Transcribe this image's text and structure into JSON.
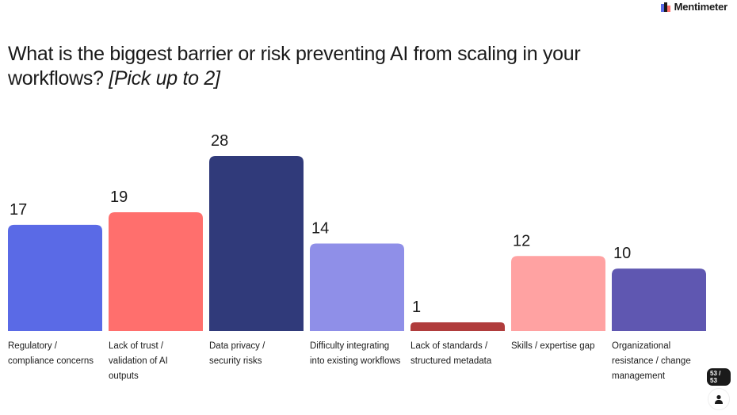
{
  "brand": {
    "name": "Mentimeter"
  },
  "question": {
    "text": "What is the biggest barrier or risk preventing AI from scaling in your workflows?",
    "hint": "[Pick up to 2]"
  },
  "chart_data": {
    "type": "bar",
    "categories": [
      "Regulatory /\ncompliance concerns",
      "Lack of trust /\nvalidation of AI\noutputs",
      "Data privacy /\nsecurity risks",
      "Difficulty integrating\ninto existing workflows",
      "Lack of standards /\nstructured metadata",
      "Skills / expertise gap",
      "Organizational\nresistance / change\nmanagement"
    ],
    "values": [
      17,
      19,
      28,
      14,
      1,
      12,
      10
    ],
    "colors": [
      "#5a6ae6",
      "#ff6f6d",
      "#303a7a",
      "#8f8fe8",
      "#b03c3c",
      "#ffa2a2",
      "#5f57b1"
    ],
    "title": "What is the biggest barrier or risk preventing AI from scaling in your workflows? [Pick up to 2]",
    "xlabel": "",
    "ylabel": "",
    "ylim": [
      0,
      28
    ],
    "grid": false
  },
  "footer": {
    "counter": "53 / 53",
    "icon": "person-icon"
  }
}
